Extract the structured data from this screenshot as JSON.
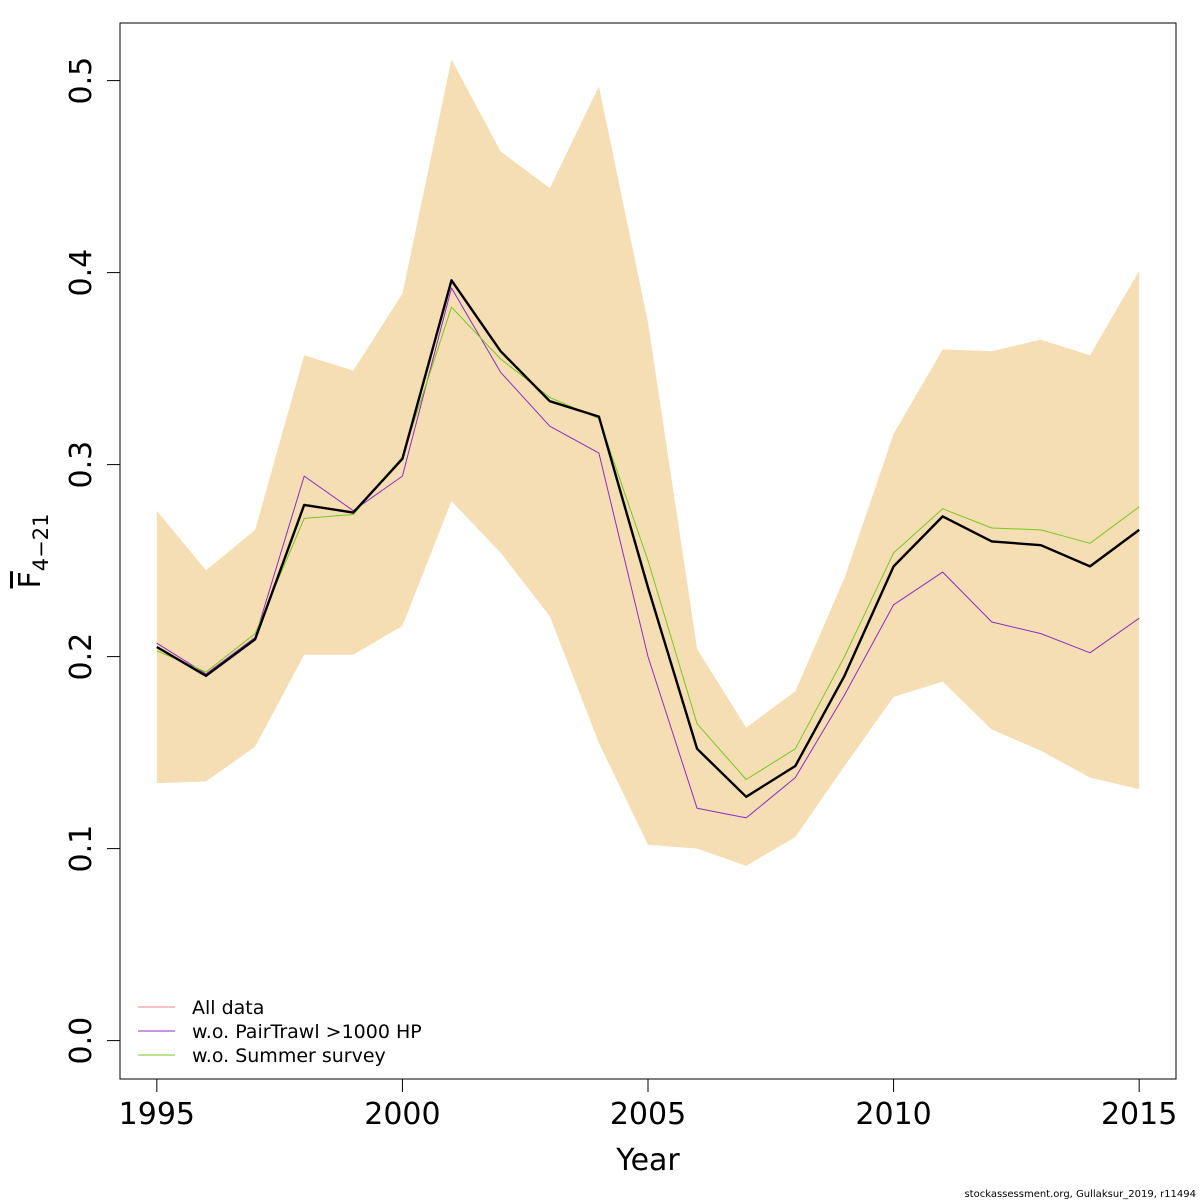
{
  "chart_data": {
    "type": "line",
    "xlabel": "Year",
    "ylabel_main": "F",
    "ylabel_sub": "4−21",
    "xlim": [
      1994.25,
      2015.75
    ],
    "ylim": [
      -0.02,
      0.53
    ],
    "x_ticks": [
      1995,
      2000,
      2005,
      2010,
      2015
    ],
    "y_ticks": [
      0.0,
      0.1,
      0.2,
      0.3,
      0.4,
      0.5
    ],
    "y_tick_labels": [
      "0.0",
      "0.1",
      "0.2",
      "0.3",
      "0.4",
      "0.5"
    ],
    "grid": false,
    "legend_position": "bottom-left",
    "x": [
      1995,
      1996,
      1997,
      1998,
      1999,
      2000,
      2001,
      2002,
      2003,
      2004,
      2005,
      2006,
      2007,
      2008,
      2009,
      2010,
      2011,
      2012,
      2013,
      2014,
      2015
    ],
    "confidence_band": {
      "color": "#f5deb3",
      "lower": [
        0.134,
        0.135,
        0.153,
        0.201,
        0.201,
        0.216,
        0.281,
        0.254,
        0.221,
        0.155,
        0.102,
        0.1,
        0.091,
        0.106,
        0.143,
        0.179,
        0.187,
        0.162,
        0.151,
        0.137,
        0.131
      ],
      "upper": [
        0.276,
        0.245,
        0.266,
        0.357,
        0.349,
        0.389,
        0.511,
        0.463,
        0.444,
        0.497,
        0.374,
        0.204,
        0.163,
        0.182,
        0.241,
        0.316,
        0.36,
        0.359,
        0.365,
        0.357,
        0.401
      ]
    },
    "series": [
      {
        "name": "All data",
        "color": "#000000",
        "width": 2.4,
        "values": [
          0.205,
          0.19,
          0.209,
          0.279,
          0.275,
          0.303,
          0.396,
          0.359,
          0.333,
          0.325,
          0.236,
          0.152,
          0.127,
          0.143,
          0.19,
          0.247,
          0.273,
          0.26,
          0.258,
          0.247,
          0.266
        ]
      },
      {
        "name": "w.o. PairTrawl >1000 HP",
        "color": "#8e2cc4",
        "width": 1,
        "values": [
          0.207,
          0.191,
          0.21,
          0.294,
          0.276,
          0.294,
          0.392,
          0.348,
          0.32,
          0.306,
          0.2,
          0.121,
          0.116,
          0.137,
          0.18,
          0.227,
          0.244,
          0.218,
          0.212,
          0.202,
          0.22
        ]
      },
      {
        "name": "w.o. Summer survey",
        "color": "#78c81e",
        "width": 1,
        "values": [
          0.203,
          0.192,
          0.212,
          0.272,
          0.274,
          0.304,
          0.382,
          0.355,
          0.335,
          0.324,
          0.25,
          0.165,
          0.136,
          0.152,
          0.2,
          0.254,
          0.277,
          0.267,
          0.266,
          0.259,
          0.278
        ]
      }
    ],
    "legend": [
      {
        "label": "All data",
        "color": "#f08080"
      },
      {
        "label": "w.o. PairTrawl >1000 HP",
        "color": "#8e2cc4"
      },
      {
        "label": "w.o. Summer survey",
        "color": "#78c81e"
      }
    ]
  },
  "credit": "stockassessment.org, Gullaksur_2019, r11494"
}
